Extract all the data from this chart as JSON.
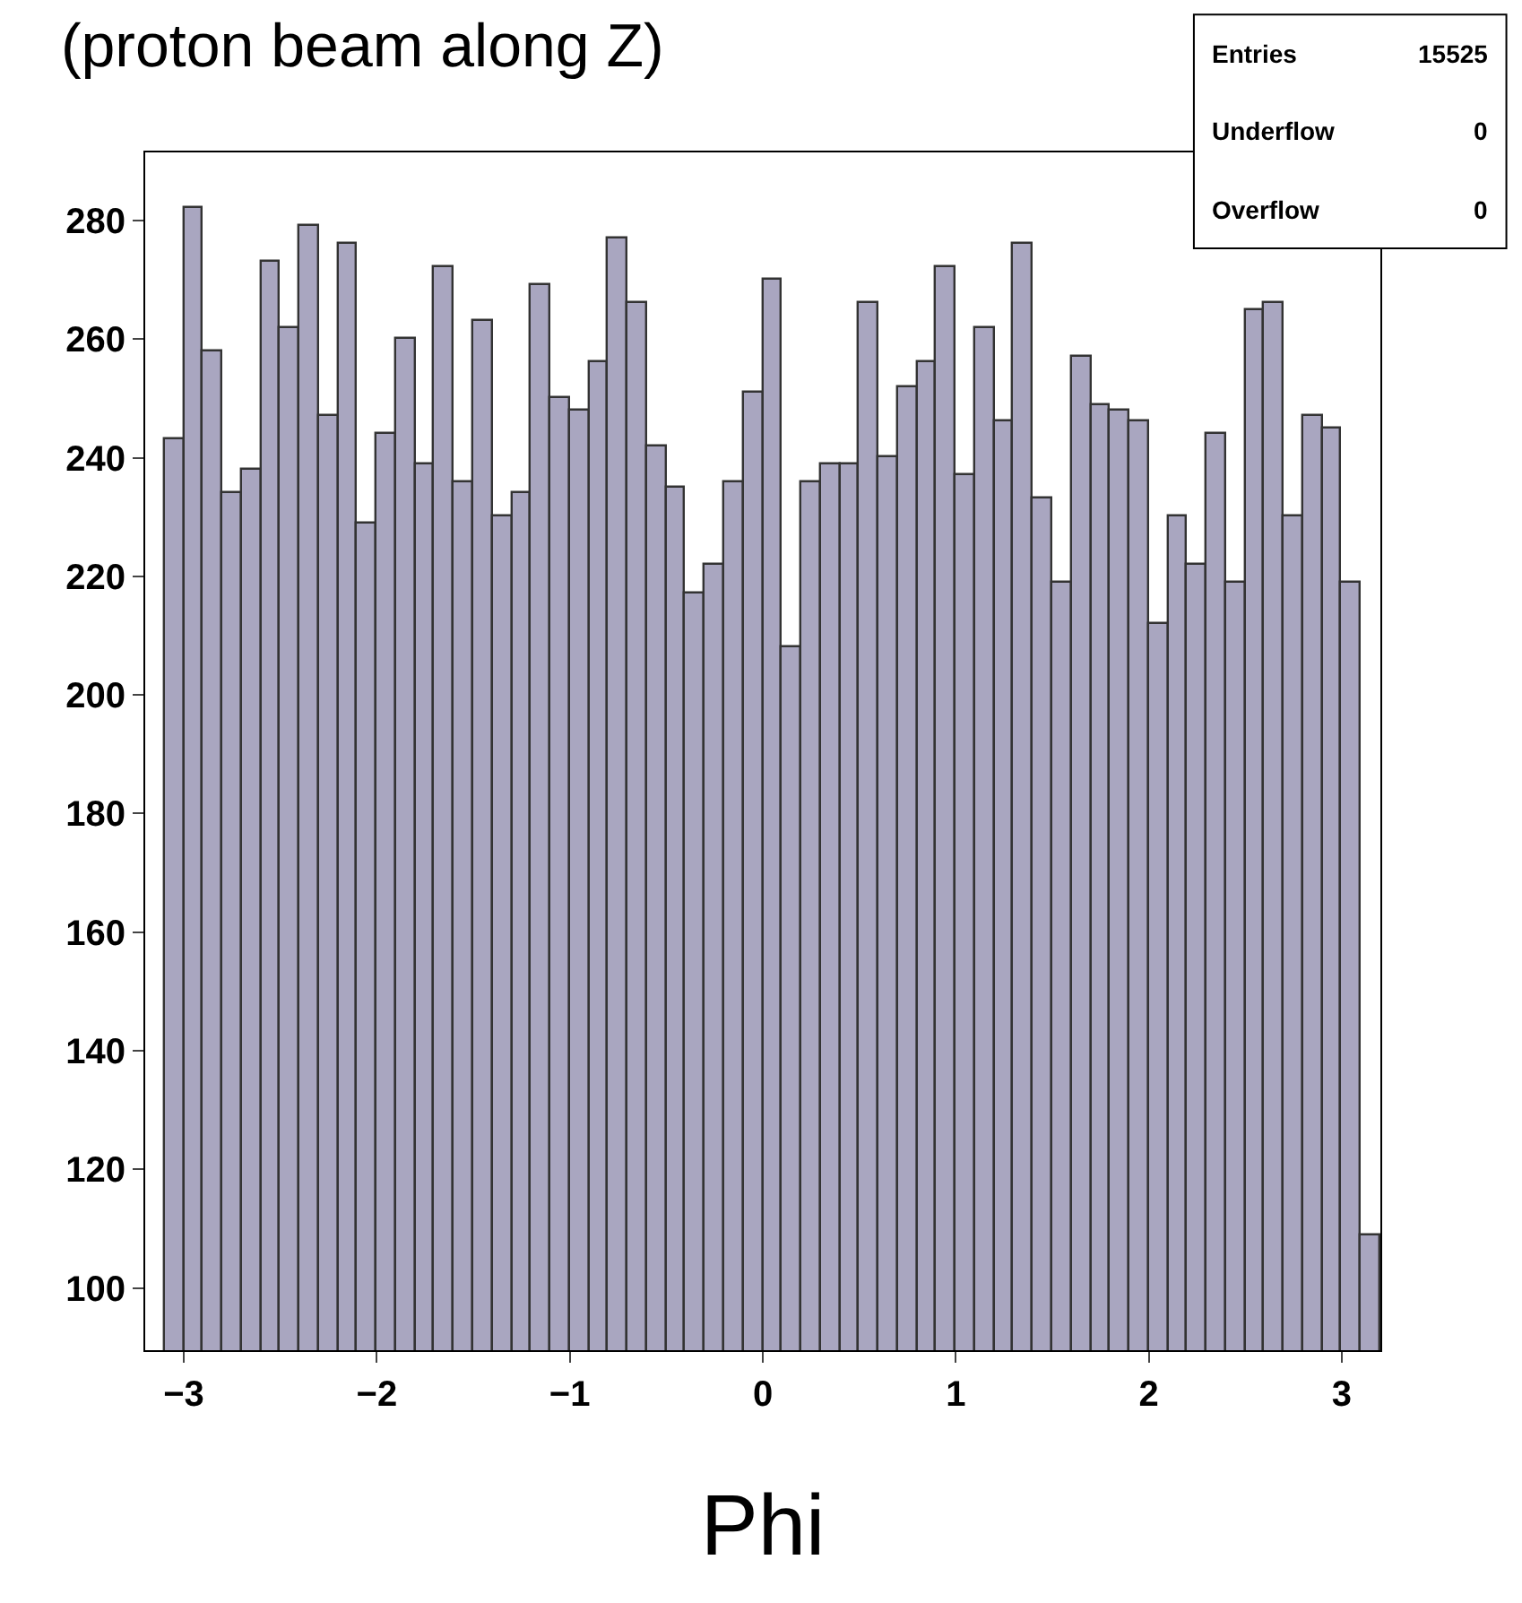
{
  "chart_data": {
    "type": "histogram",
    "title": "(proton beam along Z)",
    "xlabel": "Phi",
    "bins": [
      -3.1,
      -3.0,
      -2.9,
      -2.8,
      -2.7,
      -2.6,
      -2.5,
      -2.4,
      -2.3,
      -2.2,
      -2.1,
      -2.0,
      -1.9,
      -1.8,
      -1.7,
      -1.6,
      -1.5,
      -1.4,
      -1.3,
      -1.2,
      -1.1,
      -1.0,
      -0.9,
      -0.8,
      -0.7,
      -0.6,
      -0.5,
      -0.4,
      -0.3,
      -0.2,
      -0.1,
      0.0,
      0.1,
      0.2,
      0.3,
      0.4,
      0.5,
      0.6,
      0.7,
      0.8,
      0.9,
      1.0,
      1.1,
      1.2,
      1.3,
      1.4,
      1.5,
      1.6,
      1.7,
      1.8,
      1.9,
      2.0,
      2.1,
      2.2,
      2.3,
      2.4,
      2.5,
      2.6,
      2.7,
      2.8,
      2.9,
      3.0,
      3.1,
      3.2
    ],
    "values": [
      243,
      282,
      258,
      234,
      238,
      273,
      262,
      279,
      247,
      276,
      229,
      244,
      260,
      239,
      272,
      236,
      263,
      230,
      234,
      269,
      250,
      248,
      256,
      277,
      266,
      242,
      235,
      217,
      222,
      236,
      251,
      270,
      208,
      236,
      239,
      239,
      266,
      240,
      252,
      256,
      272,
      237,
      262,
      246,
      276,
      233,
      219,
      257,
      249,
      248,
      246,
      212,
      230,
      222,
      244,
      219,
      265,
      266,
      230,
      247,
      245,
      219,
      109
    ],
    "color": "#a9a6c0",
    "xlim": [
      -3.2,
      3.2
    ],
    "xticks": [
      {
        "value": -3,
        "label": "−3"
      },
      {
        "value": -2,
        "label": "−2"
      },
      {
        "value": -1,
        "label": "−1"
      },
      0,
      1,
      2,
      3
    ],
    "ylim": [
      89.5,
      291.5
    ],
    "yticks": [
      100,
      120,
      140,
      160,
      180,
      200,
      220,
      240,
      260,
      280
    ],
    "annotations": [
      "Entries 15525",
      "Underflow 0",
      "Overflow 0"
    ]
  }
}
